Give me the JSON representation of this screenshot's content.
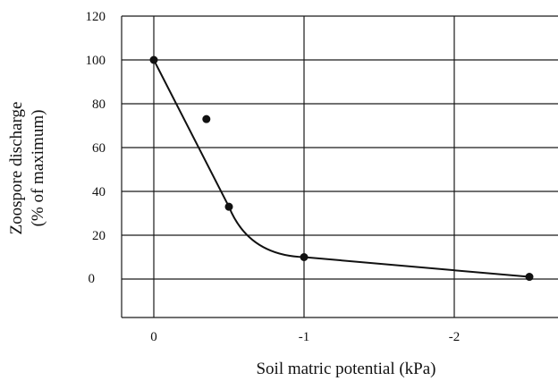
{
  "chart_data": {
    "type": "scatter",
    "title": "",
    "xlabel": "Soil matric potential (kPa)",
    "ylabel_lines": [
      "Zoospore discharge",
      "(% of maximum)"
    ],
    "x_ticks": [
      "0",
      "-1",
      "-2"
    ],
    "y_ticks": [
      "120",
      "100",
      "80",
      "60",
      "40",
      "20",
      "0"
    ],
    "xlim": [
      0.2,
      -2.7
    ],
    "ylim": [
      -18,
      120
    ],
    "grid": true,
    "legend": "none",
    "series": [
      {
        "type": "line+markers",
        "x": [
          0,
          -0.5,
          -1,
          -2.5
        ],
        "y": [
          100,
          33,
          10,
          1
        ]
      },
      {
        "type": "markers",
        "x": [
          -0.35
        ],
        "y": [
          73
        ]
      }
    ]
  }
}
